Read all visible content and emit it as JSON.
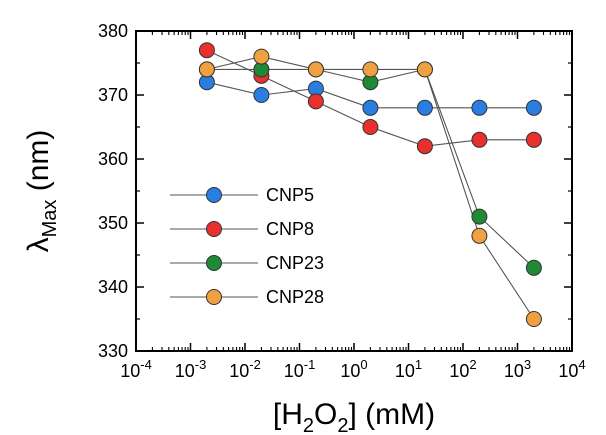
{
  "chart_data": {
    "type": "scatter",
    "title": "",
    "x_axis": {
      "label_parts": {
        "before": "[H",
        "sub1": "2",
        "middle": "O",
        "sub2": "2",
        "after": "] (mM)"
      },
      "scale": "log",
      "xlim": [
        0.0001,
        10000
      ],
      "tick_labels": [
        {
          "base": "10",
          "exp": "-4"
        },
        {
          "base": "10",
          "exp": "-3"
        },
        {
          "base": "10",
          "exp": "-2"
        },
        {
          "base": "10",
          "exp": "-1"
        },
        {
          "base": "10",
          "exp": "0"
        },
        {
          "base": "10",
          "exp": "1"
        },
        {
          "base": "10",
          "exp": "2"
        },
        {
          "base": "10",
          "exp": "3"
        },
        {
          "base": "10",
          "exp": "4"
        }
      ]
    },
    "y_axis": {
      "label_parts": {
        "symbol": "λ",
        "subscript": "Max",
        "unit": " (nm)"
      },
      "ylim": [
        330,
        380
      ],
      "ticks": [
        330,
        340,
        350,
        360,
        370,
        380
      ]
    },
    "legend": {
      "position": "left"
    },
    "x": [
      0.002,
      0.02,
      0.2,
      2,
      20,
      200,
      2000
    ],
    "series": [
      {
        "name": "CNP5",
        "color": "#2a7de1",
        "values": [
          372,
          370,
          371,
          368,
          368,
          368,
          368
        ]
      },
      {
        "name": "CNP8",
        "color": "#e8302f",
        "values": [
          377,
          373,
          369,
          365,
          362,
          363,
          363
        ]
      },
      {
        "name": "CNP23",
        "color": "#1e8a33",
        "values": [
          374,
          374,
          374,
          372,
          374,
          351,
          343
        ]
      },
      {
        "name": "CNP28",
        "color": "#f0a040",
        "values": [
          374,
          376,
          374,
          374,
          374,
          348,
          335
        ]
      }
    ]
  }
}
